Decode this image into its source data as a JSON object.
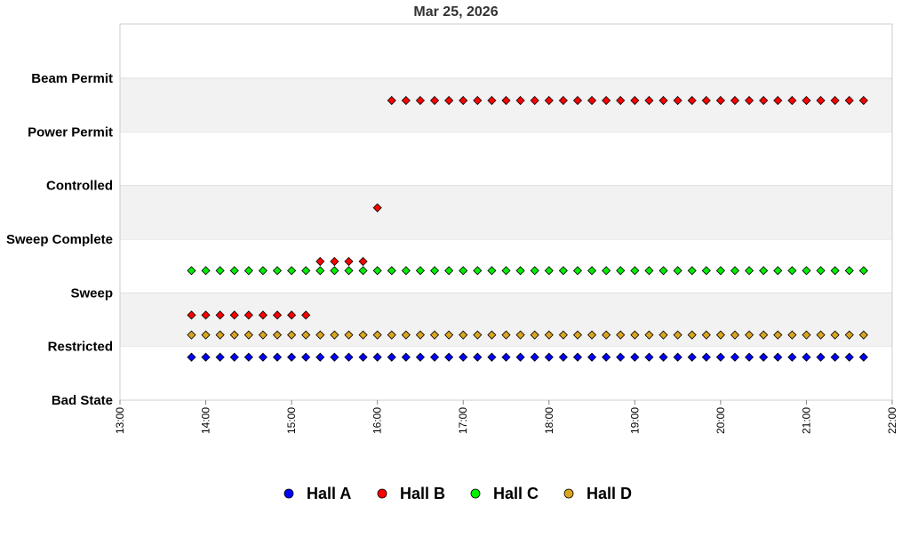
{
  "chart_data": {
    "type": "scatter",
    "title": "Mar 25, 2026",
    "xlabel": "",
    "ylabel": "",
    "y_categories": [
      "Bad State",
      "Restricted",
      "Sweep",
      "Sweep Complete",
      "Controlled",
      "Power Permit",
      "Beam Permit"
    ],
    "x_ticks": [
      "13:00",
      "14:00",
      "15:00",
      "16:00",
      "17:00",
      "18:00",
      "19:00",
      "20:00",
      "21:00",
      "22:00"
    ],
    "xlim_hours": [
      13,
      22
    ],
    "grid": "alternating horizontal bands",
    "legend_position": "bottom",
    "series": [
      {
        "name": "Hall A",
        "color": "#0000ff",
        "marker": "diamond",
        "segments": [
          {
            "state": "Restricted",
            "start": "13:50",
            "end": "21:40",
            "step_min": 10
          }
        ]
      },
      {
        "name": "Hall B",
        "color": "#ff0000",
        "marker": "diamond",
        "segments": [
          {
            "state": "Sweep",
            "start": "13:50",
            "end": "15:10",
            "step_min": 10
          },
          {
            "state": "Sweep Complete",
            "start": "15:20",
            "end": "15:50",
            "step_min": 10
          },
          {
            "state": "Controlled",
            "start": "16:00",
            "end": "16:00",
            "step_min": 10
          },
          {
            "state": "Beam Permit",
            "start": "16:10",
            "end": "21:40",
            "step_min": 10
          }
        ]
      },
      {
        "name": "Hall C",
        "color": "#00ee00",
        "marker": "diamond",
        "segments": [
          {
            "state": "Sweep",
            "start": "13:50",
            "end": "21:40",
            "step_min": 10
          }
        ]
      },
      {
        "name": "Hall D",
        "color": "#daa520",
        "marker": "diamond",
        "segments": [
          {
            "state": "Restricted",
            "start": "13:50",
            "end": "21:40",
            "step_min": 10
          }
        ]
      }
    ]
  }
}
